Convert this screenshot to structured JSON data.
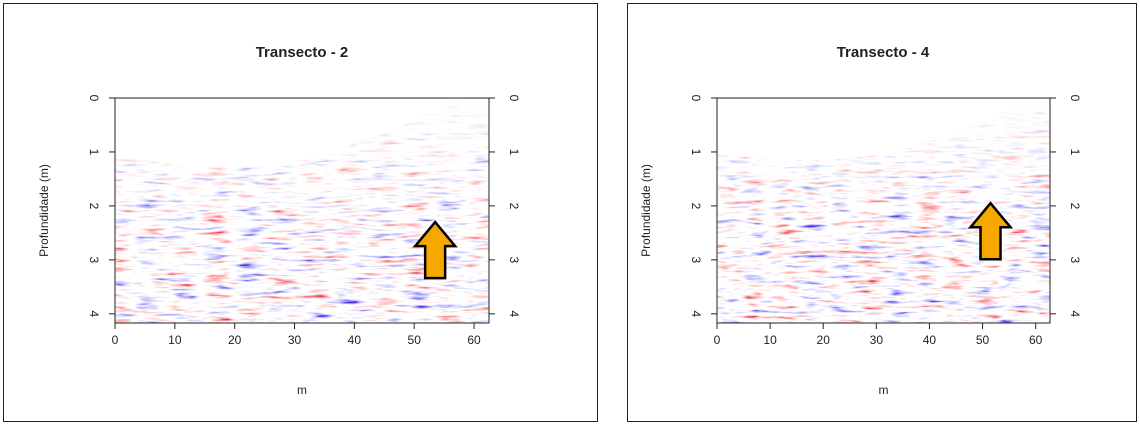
{
  "chart_data": [
    {
      "type": "radargram",
      "title": "Transecto - 2",
      "x_label": "m",
      "y_label": "Profundidade (m)",
      "xlim": [
        0,
        62.5
      ],
      "ylim": [
        4.17,
        0
      ],
      "xticks": [
        0,
        10,
        20,
        30,
        40,
        50,
        60
      ],
      "yticks": [
        0,
        1,
        2,
        3,
        4
      ],
      "y2lim": [
        4.17,
        0
      ],
      "y2ticks": [
        0,
        1,
        2,
        3,
        4
      ],
      "arrow_color": "#f7a800",
      "annotations": [
        {
          "type": "arrow",
          "x": 53.5,
          "y": 2.3
        }
      ]
    },
    {
      "type": "radargram",
      "title": "Transecto - 4",
      "x_label": "m",
      "y_label": "Profundidade (m)",
      "xlim": [
        0,
        62.7
      ],
      "ylim": [
        4.17,
        0
      ],
      "xticks": [
        0,
        10,
        20,
        30,
        40,
        50,
        60
      ],
      "yticks": [
        0,
        1,
        2,
        3,
        4
      ],
      "y2lim": [
        4.17,
        0
      ],
      "y2ticks": [
        0,
        1,
        2,
        3,
        4
      ],
      "arrow_color": "#f7a800",
      "annotations": [
        {
          "type": "arrow",
          "x": 51.5,
          "y": 1.95
        }
      ]
    }
  ]
}
